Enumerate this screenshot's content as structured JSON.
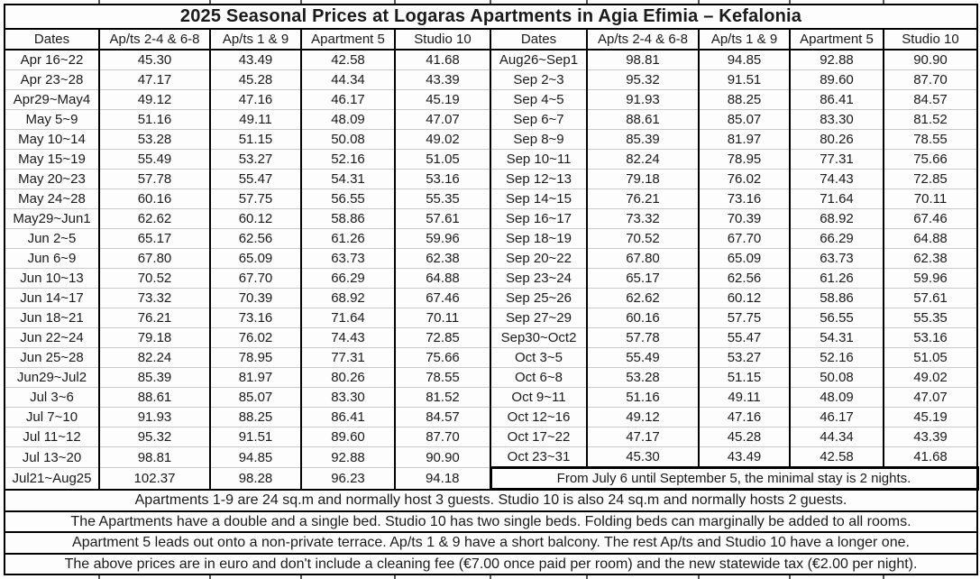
{
  "title": "2025 Seasonal Prices at Logaras Apartments in Agia Efimia – Kefalonia",
  "columns": [
    "Dates",
    "Ap/ts 2-4 & 6-8",
    "Ap/ts 1 & 9",
    "Apartment 5",
    "Studio 10"
  ],
  "left_rows": [
    {
      "dates": "Apr 16~22",
      "prices": [
        "45.30",
        "43.49",
        "42.58",
        "41.68"
      ]
    },
    {
      "dates": "Apr 23~28",
      "prices": [
        "47.17",
        "45.28",
        "44.34",
        "43.39"
      ]
    },
    {
      "dates": "Apr29~May4",
      "prices": [
        "49.12",
        "47.16",
        "46.17",
        "45.19"
      ]
    },
    {
      "dates": "May 5~9",
      "prices": [
        "51.16",
        "49.11",
        "48.09",
        "47.07"
      ]
    },
    {
      "dates": "May 10~14",
      "prices": [
        "53.28",
        "51.15",
        "50.08",
        "49.02"
      ]
    },
    {
      "dates": "May 15~19",
      "prices": [
        "55.49",
        "53.27",
        "52.16",
        "51.05"
      ]
    },
    {
      "dates": "May 20~23",
      "prices": [
        "57.78",
        "55.47",
        "54.31",
        "53.16"
      ]
    },
    {
      "dates": "May 24~28",
      "prices": [
        "60.16",
        "57.75",
        "56.55",
        "55.35"
      ]
    },
    {
      "dates": "May29~Jun1",
      "prices": [
        "62.62",
        "60.12",
        "58.86",
        "57.61"
      ]
    },
    {
      "dates": "Jun 2~5",
      "prices": [
        "65.17",
        "62.56",
        "61.26",
        "59.96"
      ]
    },
    {
      "dates": "Jun 6~9",
      "prices": [
        "67.80",
        "65.09",
        "63.73",
        "62.38"
      ]
    },
    {
      "dates": "Jun 10~13",
      "prices": [
        "70.52",
        "67.70",
        "66.29",
        "64.88"
      ]
    },
    {
      "dates": "Jun 14~17",
      "prices": [
        "73.32",
        "70.39",
        "68.92",
        "67.46"
      ]
    },
    {
      "dates": "Jun 18~21",
      "prices": [
        "76.21",
        "73.16",
        "71.64",
        "70.11"
      ]
    },
    {
      "dates": "Jun 22~24",
      "prices": [
        "79.18",
        "76.02",
        "74.43",
        "72.85"
      ]
    },
    {
      "dates": "Jun 25~28",
      "prices": [
        "82.24",
        "78.95",
        "77.31",
        "75.66"
      ]
    },
    {
      "dates": "Jun29~Jul2",
      "prices": [
        "85.39",
        "81.97",
        "80.26",
        "78.55"
      ]
    },
    {
      "dates": "Jul 3~6",
      "prices": [
        "88.61",
        "85.07",
        "83.30",
        "81.52"
      ]
    },
    {
      "dates": "Jul 7~10",
      "prices": [
        "91.93",
        "88.25",
        "86.41",
        "84.57"
      ]
    },
    {
      "dates": "Jul 11~12",
      "prices": [
        "95.32",
        "91.51",
        "89.60",
        "87.70"
      ]
    },
    {
      "dates": "Jul 13~20",
      "prices": [
        "98.81",
        "94.85",
        "92.88",
        "90.90"
      ]
    },
    {
      "dates": "Jul21~Aug25",
      "prices": [
        "102.37",
        "98.28",
        "96.23",
        "94.18"
      ]
    }
  ],
  "right_rows": [
    {
      "dates": "Aug26~Sep1",
      "prices": [
        "98.81",
        "94.85",
        "92.88",
        "90.90"
      ]
    },
    {
      "dates": "Sep 2~3",
      "prices": [
        "95.32",
        "91.51",
        "89.60",
        "87.70"
      ]
    },
    {
      "dates": "Sep 4~5",
      "prices": [
        "91.93",
        "88.25",
        "86.41",
        "84.57"
      ]
    },
    {
      "dates": "Sep 6~7",
      "prices": [
        "88.61",
        "85.07",
        "83.30",
        "81.52"
      ]
    },
    {
      "dates": "Sep 8~9",
      "prices": [
        "85.39",
        "81.97",
        "80.26",
        "78.55"
      ]
    },
    {
      "dates": "Sep 10~11",
      "prices": [
        "82.24",
        "78.95",
        "77.31",
        "75.66"
      ]
    },
    {
      "dates": "Sep 12~13",
      "prices": [
        "79.18",
        "76.02",
        "74.43",
        "72.85"
      ]
    },
    {
      "dates": "Sep 14~15",
      "prices": [
        "76.21",
        "73.16",
        "71.64",
        "70.11"
      ]
    },
    {
      "dates": "Sep 16~17",
      "prices": [
        "73.32",
        "70.39",
        "68.92",
        "67.46"
      ]
    },
    {
      "dates": "Sep 18~19",
      "prices": [
        "70.52",
        "67.70",
        "66.29",
        "64.88"
      ]
    },
    {
      "dates": "Sep 20~22",
      "prices": [
        "67.80",
        "65.09",
        "63.73",
        "62.38"
      ]
    },
    {
      "dates": "Sep 23~24",
      "prices": [
        "65.17",
        "62.56",
        "61.26",
        "59.96"
      ]
    },
    {
      "dates": "Sep 25~26",
      "prices": [
        "62.62",
        "60.12",
        "58.86",
        "57.61"
      ]
    },
    {
      "dates": "Sep 27~29",
      "prices": [
        "60.16",
        "57.75",
        "56.55",
        "55.35"
      ]
    },
    {
      "dates": "Sep30~Oct2",
      "prices": [
        "57.78",
        "55.47",
        "54.31",
        "53.16"
      ]
    },
    {
      "dates": "Oct 3~5",
      "prices": [
        "55.49",
        "53.27",
        "52.16",
        "51.05"
      ]
    },
    {
      "dates": "Oct 6~8",
      "prices": [
        "53.28",
        "51.15",
        "50.08",
        "49.02"
      ]
    },
    {
      "dates": "Oct 9~11",
      "prices": [
        "51.16",
        "49.11",
        "48.09",
        "47.07"
      ]
    },
    {
      "dates": "Oct 12~16",
      "prices": [
        "49.12",
        "47.16",
        "46.17",
        "45.19"
      ]
    },
    {
      "dates": "Oct 17~22",
      "prices": [
        "47.17",
        "45.28",
        "44.34",
        "43.39"
      ]
    },
    {
      "dates": "Oct 23~31",
      "prices": [
        "45.30",
        "43.49",
        "42.58",
        "41.68"
      ]
    }
  ],
  "right_note": "From July 6 until September 5, the minimal stay is 2 nights.",
  "footnotes": [
    "Apartments 1-9 are 24 sq.m and normally host 3 guests. Studio 10 is also 24 sq.m and normally hosts 2 guests.",
    "The Apartments have a double and a single bed. Studio 10 has two single beds. Folding beds can marginally be added to all rooms.",
    "Apartment 5 leads out onto a non-private terrace. Ap/ts 1 & 9 have a short balcony. The rest Ap/ts and Studio 10 have a longer one.",
    "The above prices are in euro and don't include a cleaning fee (€7.00 once paid per room) and the new statewide tax (€2.00 per night)."
  ],
  "colors": {
    "border": "#000000",
    "row_line": "#c9c9c9",
    "background": "#ffffff",
    "text": "#1a1a1a"
  }
}
